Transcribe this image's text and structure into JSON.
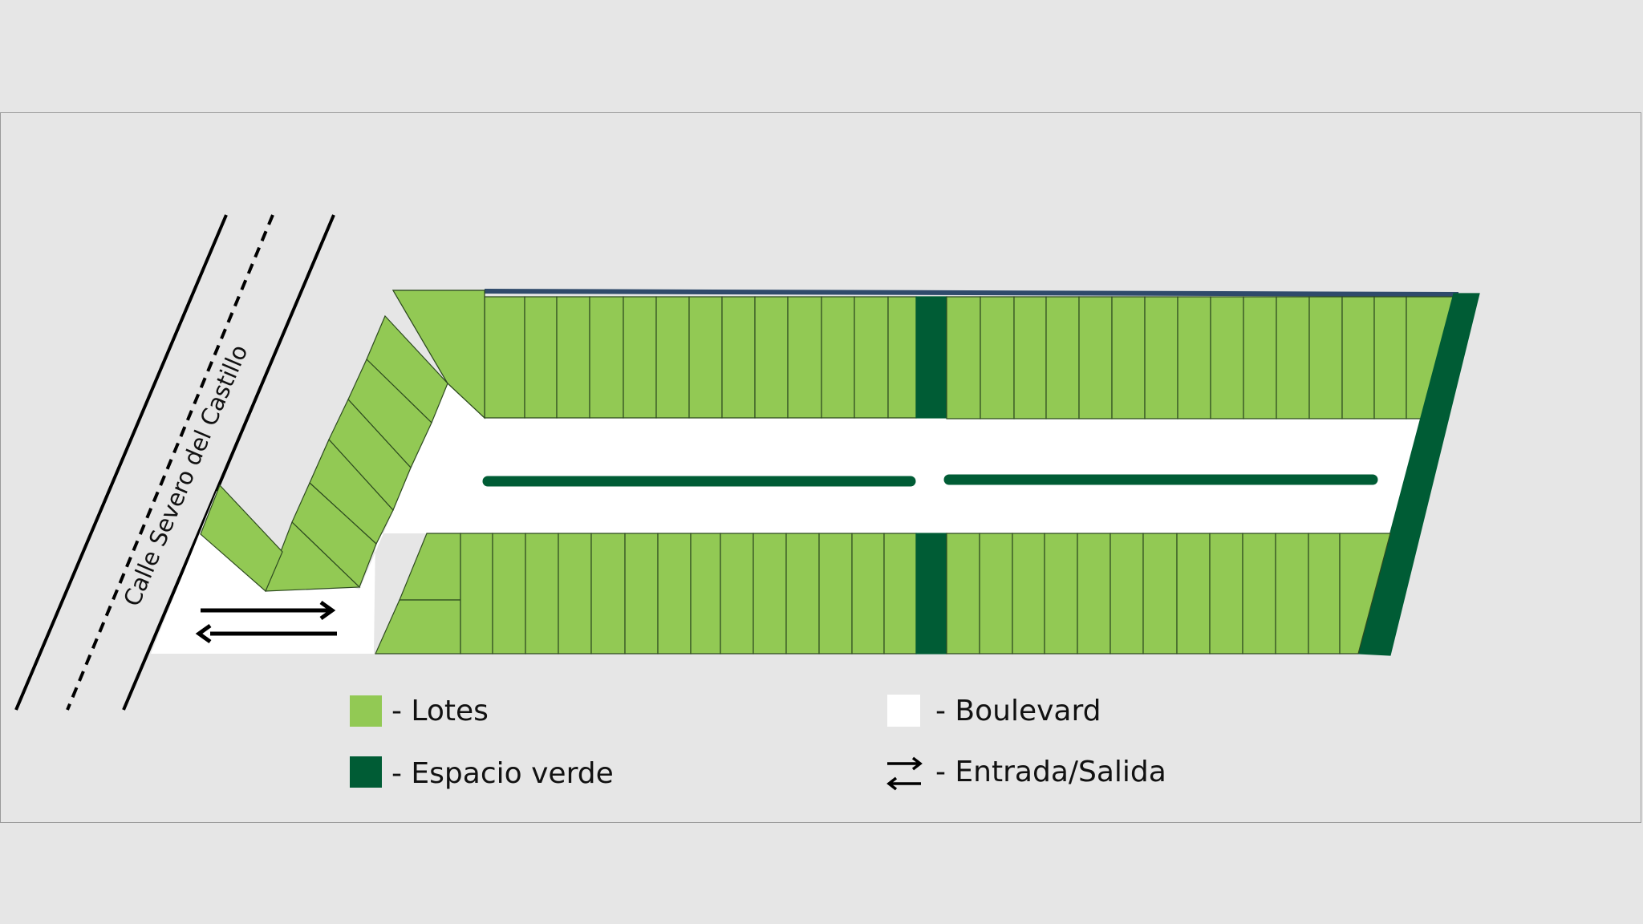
{
  "street": {
    "label": "Calle Severo del Castillo"
  },
  "legend": {
    "lotes": "- Lotes",
    "espacio_verde": "- Espacio verde",
    "boulevard": "- Boulevard",
    "entrada_salida": "- Entrada/Salida"
  },
  "colors": {
    "lot": "#92c954",
    "green_space": "#005c35",
    "boulevard": "#ffffff",
    "background": "#e6e6e6",
    "north_edge": "#2f4a6b"
  }
}
